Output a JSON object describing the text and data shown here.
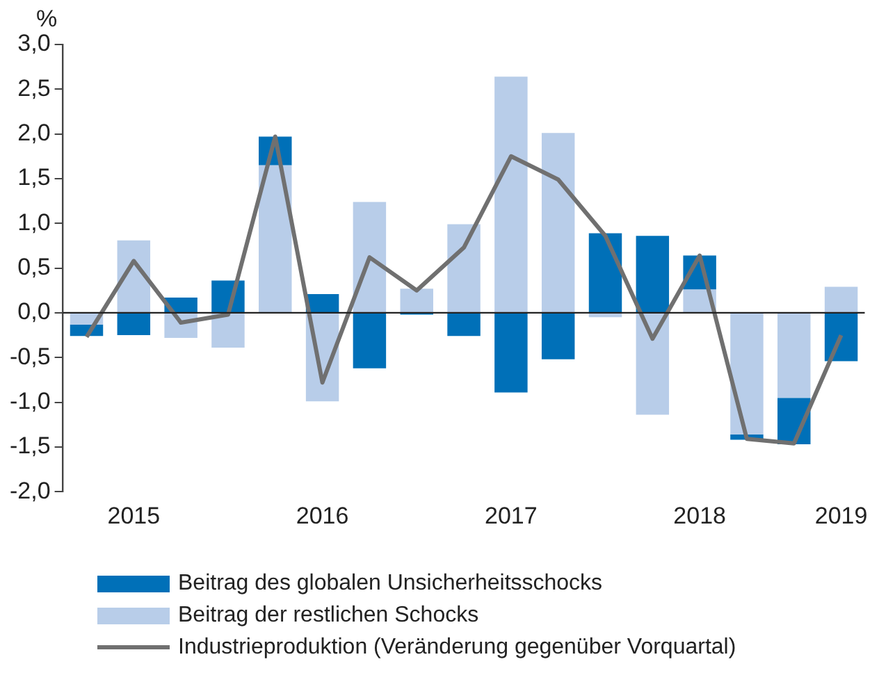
{
  "chart_data": {
    "type": "bar",
    "stacked": true,
    "ylabel": "%",
    "categories": [
      null,
      "2015",
      null,
      null,
      null,
      "2016",
      null,
      null,
      null,
      "2017",
      null,
      null,
      null,
      "2018",
      null,
      null,
      "2019"
    ],
    "series": [
      {
        "name": "Beitrag der restlichen Schocks",
        "color": "#b8cde9",
        "values": [
          -0.13,
          0.81,
          -0.28,
          -0.39,
          1.65,
          -0.99,
          1.24,
          0.27,
          0.99,
          2.64,
          2.01,
          -0.05,
          -1.14,
          0.26,
          -1.36,
          -0.95,
          0.29
        ]
      },
      {
        "name": "Beitrag des globalen Unsicherheitsschocks",
        "color": "#0070b8",
        "values": [
          -0.13,
          -0.25,
          0.17,
          0.36,
          0.32,
          0.21,
          -0.62,
          -0.02,
          -0.26,
          -0.89,
          -0.52,
          0.89,
          0.86,
          0.38,
          -0.06,
          -0.52,
          -0.54
        ]
      },
      {
        "name": "Industrieproduktion (Veränderung gegenüber Vorquartal)",
        "type": "line",
        "color": "#707070",
        "values": [
          -0.27,
          0.58,
          -0.11,
          -0.02,
          1.97,
          -0.78,
          0.62,
          0.25,
          0.73,
          1.75,
          1.49,
          0.86,
          -0.29,
          0.64,
          -1.41,
          -1.46,
          -0.25
        ]
      }
    ],
    "ylim": [
      -2,
      3
    ],
    "yticks": [
      {
        "value": -2,
        "label": "-2,0"
      },
      {
        "value": -1.5,
        "label": "-1,5"
      },
      {
        "value": -1,
        "label": "-1,0"
      },
      {
        "value": -0.5,
        "label": "-0,5"
      },
      {
        "value": 0,
        "label": "0,0"
      },
      {
        "value": 0.5,
        "label": "0,5"
      },
      {
        "value": 1,
        "label": "1,0"
      },
      {
        "value": 1.5,
        "label": "1,5"
      },
      {
        "value": 2,
        "label": "2,0"
      },
      {
        "value": 2.5,
        "label": "2,5"
      },
      {
        "value": 3,
        "label": "3,0"
      }
    ],
    "ref_lines": [
      {
        "axis": "y",
        "value": 0,
        "color": "#222222"
      }
    ],
    "grid": false,
    "legend": "bottom",
    "marker": "none",
    "line_style": "solid"
  }
}
